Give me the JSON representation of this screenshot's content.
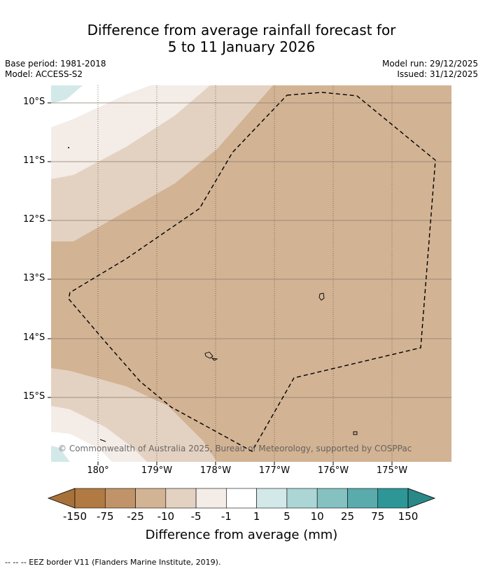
{
  "title_line1": "Difference from average rainfall forecast for",
  "title_line2": "5 to 11 January 2026",
  "base_period": "Base period: 1981-2018",
  "model": "Model: ACCESS-S2",
  "model_run": "Model run: 29/12/2025",
  "issued": "Issued: 31/12/2025",
  "map": {
    "lat_labels": [
      "10°S",
      "11°S",
      "12°S",
      "13°S",
      "14°S",
      "15°S"
    ],
    "lon_labels": [
      "180°",
      "179°W",
      "178°W",
      "177°W",
      "176°W",
      "175°W"
    ],
    "copyright": "© Commonwealth of Australia 2025, Bureau of Meteorology, supported by COSPPac"
  },
  "colorbar": {
    "ticks": [
      "-150",
      "-75",
      "-25",
      "-10",
      "-5",
      "-1",
      "1",
      "5",
      "10",
      "25",
      "75",
      "150"
    ],
    "colors": [
      "#a8713a",
      "#b17a43",
      "#c19368",
      "#d2b394",
      "#e3d2c2",
      "#f4ece7",
      "#ffffff",
      "#d3e9e9",
      "#acd5d6",
      "#86c1c2",
      "#5aabac",
      "#2e9696",
      "#2a8888"
    ],
    "title": "Difference from average (mm)"
  },
  "footer": "--  --  -- EEZ border V11 (Flanders Marine Institute, 2019)."
}
